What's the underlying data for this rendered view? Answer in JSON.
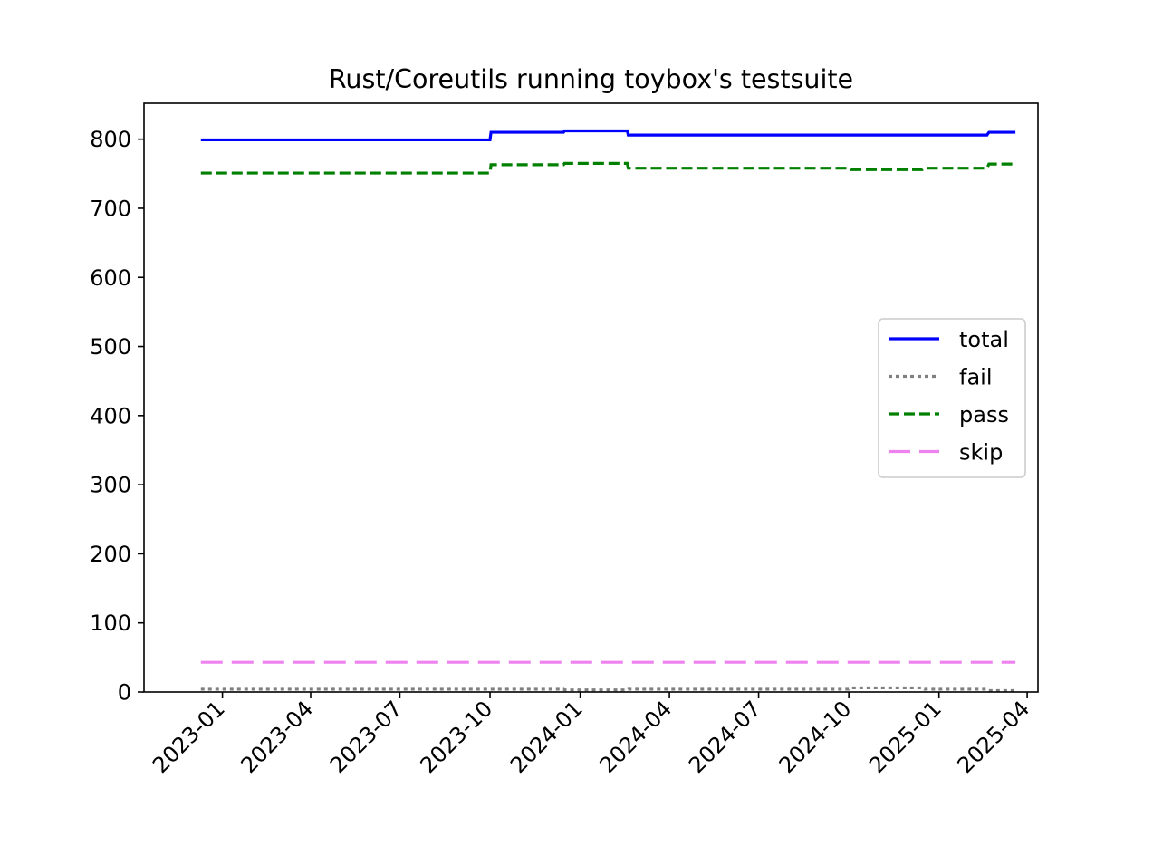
{
  "chart_data": {
    "type": "line",
    "title": "Rust/Coreutils running toybox's testsuite",
    "xlabel": "",
    "ylabel": "",
    "x_axis": {
      "kind": "date",
      "range": [
        "2022-10-13",
        "2025-04-12"
      ],
      "tick_dates": [
        "2023-01-01",
        "2023-04-01",
        "2023-07-01",
        "2023-10-01",
        "2024-01-01",
        "2024-04-01",
        "2024-07-01",
        "2024-10-01",
        "2025-01-01",
        "2025-04-01"
      ],
      "tick_labels": [
        "2023-01",
        "2023-04",
        "2023-07",
        "2023-10",
        "2024-01",
        "2024-04",
        "2024-07",
        "2024-10",
        "2025-01",
        "2025-04"
      ],
      "tick_label_rotation": 45
    },
    "y_axis": {
      "range": [
        0,
        852
      ],
      "ticks": [
        0,
        100,
        200,
        300,
        400,
        500,
        600,
        700,
        800
      ],
      "tick_labels": [
        "0",
        "100",
        "200",
        "300",
        "400",
        "500",
        "600",
        "700",
        "800"
      ]
    },
    "grid": false,
    "legend": {
      "placement": "center-right"
    },
    "series": [
      {
        "name": "total",
        "color": "#0000ff",
        "dash": "solid",
        "x": [
          "2022-12-10",
          "2023-10-01",
          "2023-10-02",
          "2023-12-15",
          "2023-12-16",
          "2024-02-18",
          "2024-02-19",
          "2025-02-19",
          "2025-02-21",
          "2025-03-20"
        ],
        "y": [
          799,
          799,
          810,
          810,
          812,
          812,
          806,
          806,
          810,
          810
        ]
      },
      {
        "name": "fail",
        "color": "#808080",
        "dash": "dotted",
        "x": [
          "2022-12-10",
          "2023-12-15",
          "2023-12-16",
          "2024-02-18",
          "2024-02-19",
          "2024-10-01",
          "2024-10-03",
          "2024-12-15",
          "2024-12-17",
          "2025-02-19",
          "2025-02-21",
          "2025-03-20"
        ],
        "y": [
          4,
          4,
          3,
          3,
          4,
          4,
          6,
          6,
          4,
          4,
          2,
          2
        ]
      },
      {
        "name": "pass",
        "color": "#008000",
        "dash": "dashed",
        "x": [
          "2022-12-10",
          "2023-10-01",
          "2023-10-02",
          "2023-12-15",
          "2023-12-16",
          "2024-02-18",
          "2024-02-19",
          "2024-10-01",
          "2024-10-03",
          "2024-12-15",
          "2024-12-17",
          "2025-02-19",
          "2025-02-21",
          "2025-03-20"
        ],
        "y": [
          751,
          751,
          763,
          763,
          765,
          765,
          758,
          758,
          756,
          756,
          758,
          758,
          764,
          764
        ]
      },
      {
        "name": "skip",
        "color": "#ee82ee",
        "dash": "longdash",
        "x": [
          "2022-12-10",
          "2025-03-20"
        ],
        "y": [
          43,
          43
        ]
      }
    ]
  }
}
